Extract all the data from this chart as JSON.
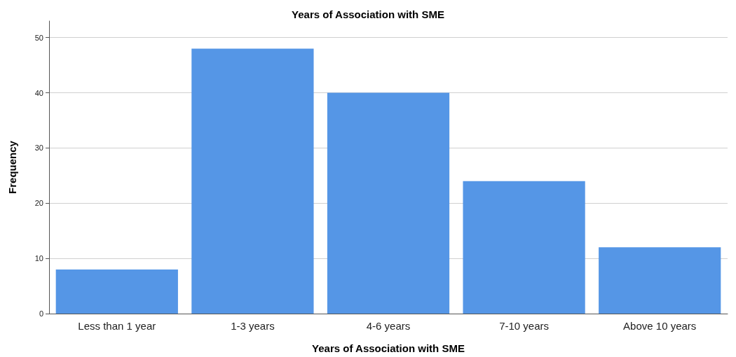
{
  "chart_data": {
    "type": "bar",
    "title": "Years of Association with SME",
    "xlabel": "Years of Association with SME",
    "ylabel": "Frequency",
    "categories": [
      "Less than 1 year",
      "1-3 years",
      "4-6 years",
      "7-10 years",
      "Above 10 years"
    ],
    "values": [
      8,
      48,
      40,
      24,
      12
    ],
    "color": "#5596e6",
    "ylim": [
      0,
      53
    ],
    "yticks": [
      0,
      10,
      20,
      30,
      40,
      50
    ],
    "grid": "y"
  }
}
